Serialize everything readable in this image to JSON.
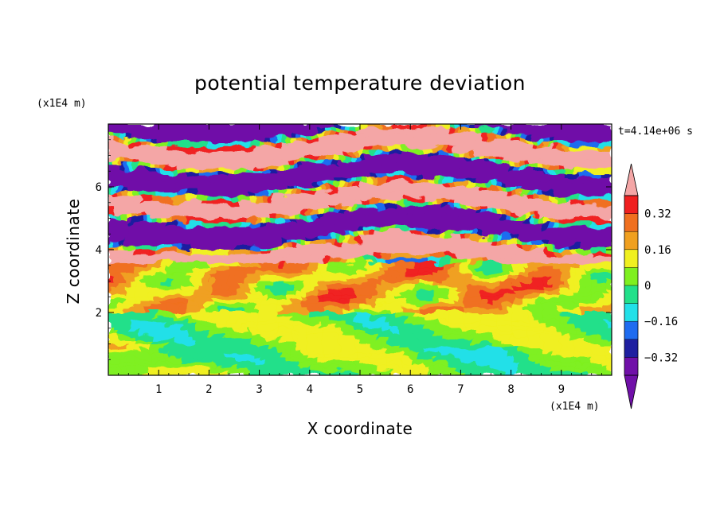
{
  "chart_data": {
    "type": "heatmap",
    "title": "potential temperature deviation",
    "xlabel": "X coordinate",
    "ylabel": "Z coordinate",
    "x_unit": "(x1E4 m)",
    "y_unit": "(x1E4 m)",
    "time_label": "t=4.14e+06 s",
    "xlim": [
      0,
      10
    ],
    "ylim": [
      0,
      8
    ],
    "x_ticks": [
      1,
      2,
      3,
      4,
      5,
      6,
      7,
      8,
      9
    ],
    "y_ticks": [
      2,
      4,
      6
    ],
    "grid": false,
    "colorbar": {
      "placement": "right",
      "levels": [
        -0.4,
        -0.32,
        -0.24,
        -0.16,
        -0.08,
        0,
        0.08,
        0.16,
        0.24,
        0.32,
        0.4
      ],
      "labeled_ticks": [
        {
          "value": 0.32,
          "label": "0.32"
        },
        {
          "value": 0.16,
          "label": "0.16"
        },
        {
          "value": 0,
          "label": "0"
        },
        {
          "value": -0.16,
          "label": "−0.16"
        },
        {
          "value": -0.32,
          "label": "−0.32"
        }
      ],
      "colors": [
        "#7010a8",
        "#1f1fa0",
        "#1f6cf0",
        "#22e0e8",
        "#22e08a",
        "#7ff020",
        "#f0f020",
        "#f0a020",
        "#f07020",
        "#f02020",
        "#f4a6a6"
      ],
      "under_color": "#7010a8",
      "over_color": "#f4a6a6"
    },
    "layers": [
      {
        "z_range": [
          0,
          2
        ],
        "dominant_value": 0.04,
        "description_value": "near zero, mixed -0.32 to 0.24"
      },
      {
        "z_range": [
          2,
          3.5
        ],
        "dominant_value": 0.2,
        "description_value": "mixed -0.4 to 0.4"
      },
      {
        "z_range": [
          3.5,
          8
        ],
        "dominant_value": 0.4,
        "description_value": "alternating bands below -0.4 and above 0.4"
      }
    ]
  }
}
